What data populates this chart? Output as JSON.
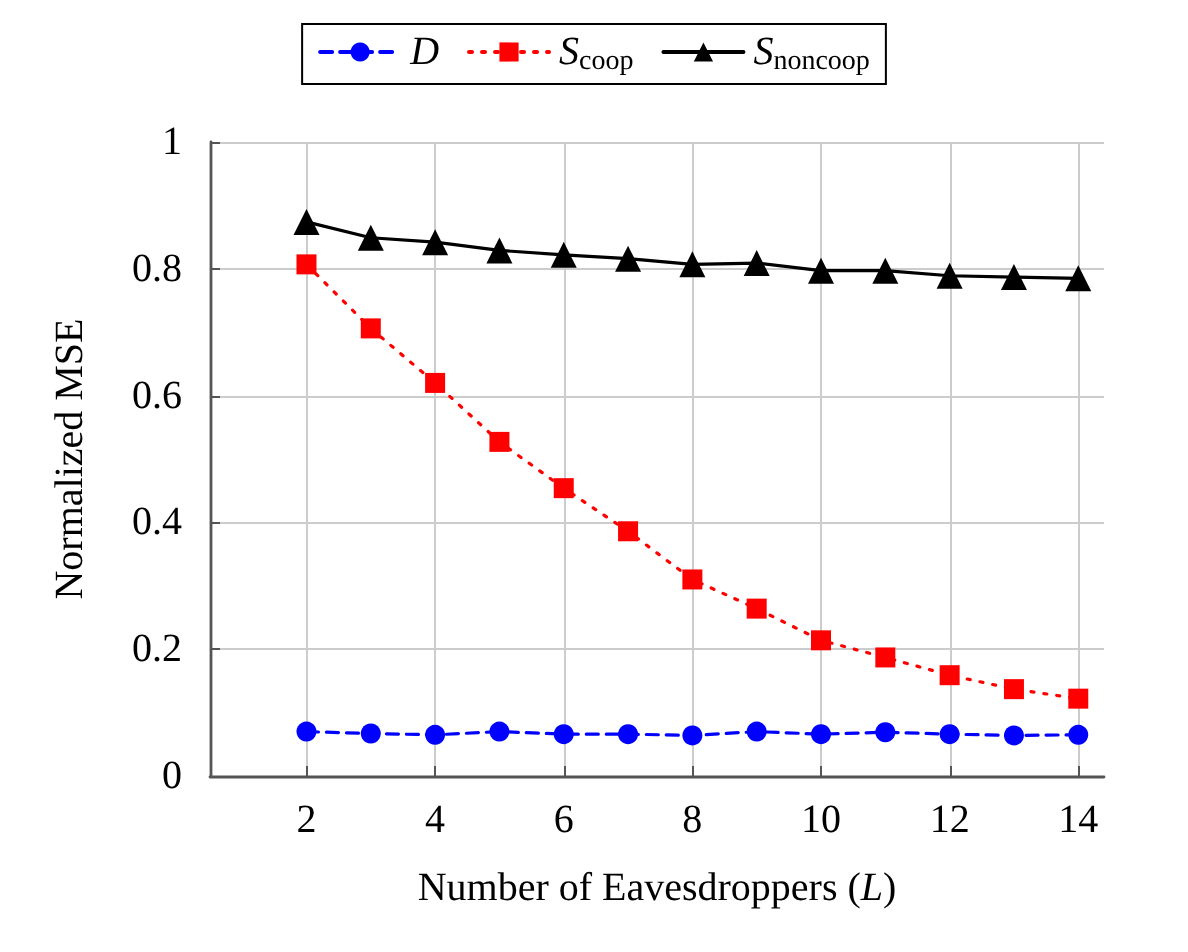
{
  "chart_data": {
    "type": "line",
    "xlabel": "Number of Eavesdroppers (L)",
    "ylabel": "Normalized MSE",
    "x": [
      2,
      3,
      4,
      5,
      6,
      7,
      8,
      9,
      10,
      11,
      12,
      13,
      14
    ],
    "series": [
      {
        "name": "D",
        "color": "#0000ff",
        "marker": "circle",
        "line_style": "dashed",
        "values": [
          0.07,
          0.067,
          0.065,
          0.07,
          0.066,
          0.066,
          0.064,
          0.07,
          0.066,
          0.069,
          0.066,
          0.064,
          0.065
        ]
      },
      {
        "name": "S$_{coop}$",
        "color": "#ff0000",
        "marker": "square",
        "line_style": "dotted",
        "values": [
          0.807,
          0.706,
          0.62,
          0.527,
          0.454,
          0.386,
          0.31,
          0.264,
          0.214,
          0.187,
          0.159,
          0.137,
          0.122
        ]
      },
      {
        "name": "S$_{noncoop}$",
        "color": "#000000",
        "marker": "triangle",
        "line_style": "solid",
        "values": [
          0.874,
          0.849,
          0.842,
          0.829,
          0.822,
          0.816,
          0.807,
          0.809,
          0.797,
          0.797,
          0.789,
          0.787,
          0.785
        ]
      }
    ],
    "xlim": [
      0.5,
      14.4
    ],
    "xticks": [
      2,
      4,
      6,
      8,
      10,
      12,
      14
    ],
    "ylim": [
      0,
      1
    ],
    "yticks": [
      0,
      0.2,
      0.4,
      0.6,
      0.8,
      1
    ],
    "grid": true,
    "legend": "top"
  }
}
